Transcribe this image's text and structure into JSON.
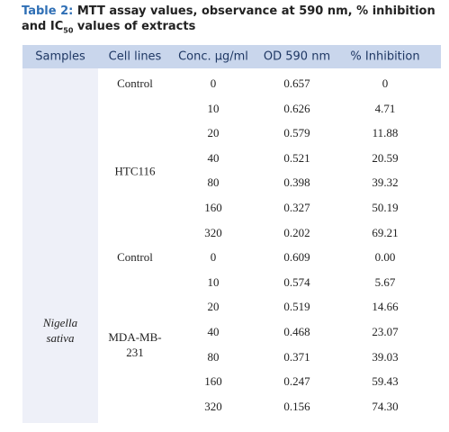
{
  "title": {
    "label": "Table 2:",
    "text": " MTT assay values, observance at 590 nm, % inhibition and IC",
    "subscript": "50",
    "text_end": " values of extracts"
  },
  "table": {
    "headers": [
      "Samples",
      "Cell lines",
      "Conc. μg/ml",
      "OD 590 nm",
      "% Inhibition"
    ],
    "sample": "Nigella sativa",
    "groups": [
      {
        "control": "Control",
        "name": "HTC116",
        "rows": [
          [
            "0",
            "0.657",
            "0"
          ],
          [
            "10",
            "0.626",
            "4.71"
          ],
          [
            "20",
            "0.579",
            "11.88"
          ],
          [
            "40",
            "0.521",
            "20.59"
          ],
          [
            "80",
            "0.398",
            "39.32"
          ],
          [
            "160",
            "0.327",
            "50.19"
          ],
          [
            "320",
            "0.202",
            "69.21"
          ]
        ]
      },
      {
        "control": "Control",
        "name": "MDA-MB-231",
        "rows": [
          [
            "0",
            "0.609",
            "0.00"
          ],
          [
            "10",
            "0.574",
            "5.67"
          ],
          [
            "20",
            "0.519",
            "14.66"
          ],
          [
            "40",
            "0.468",
            "23.07"
          ],
          [
            "80",
            "0.371",
            "39.03"
          ],
          [
            "160",
            "0.247",
            "59.43"
          ],
          [
            "320",
            "0.156",
            "74.30"
          ]
        ]
      }
    ]
  }
}
